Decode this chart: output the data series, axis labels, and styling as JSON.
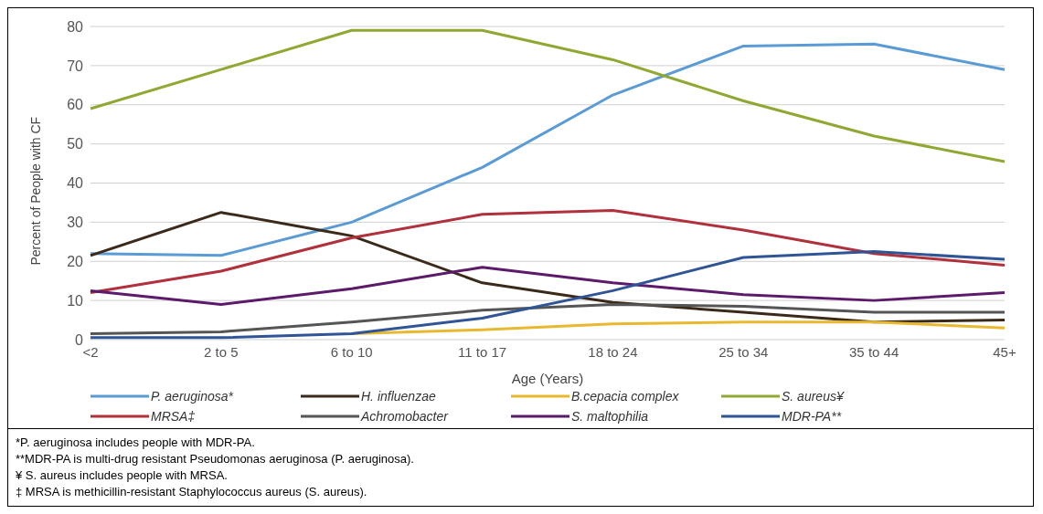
{
  "chart_data": {
    "type": "line",
    "xlabel": "Age (Years)",
    "ylabel": "Percent of People with CF",
    "categories": [
      "<2",
      "2 to 5",
      "6 to 10",
      "11 to 17",
      "18 to 24",
      "25 to 34",
      "35 to 44",
      "45+"
    ],
    "series": [
      {
        "name": "P. aeruginosa*",
        "color": "#5b9bd5",
        "values": [
          22,
          21.5,
          30,
          44,
          62.5,
          75,
          75.5,
          69
        ]
      },
      {
        "name": "H. influenzae",
        "color": "#3b2a1a",
        "values": [
          21.5,
          32.5,
          26.5,
          14.5,
          9.5,
          7,
          4.5,
          5
        ]
      },
      {
        "name": "B.cepacia complex",
        "color": "#e8b92e",
        "values": [
          null,
          null,
          1.5,
          2.5,
          4,
          4.5,
          4.5,
          3
        ]
      },
      {
        "name": "S. aureus¥",
        "color": "#8fa832",
        "values": [
          59,
          69,
          79,
          79,
          71.5,
          61,
          52,
          45.5
        ]
      },
      {
        "name": "MRSA‡",
        "color": "#b0303c",
        "values": [
          12,
          17.5,
          26,
          32,
          33,
          28,
          22,
          19
        ]
      },
      {
        "name": "Achromobacter",
        "color": "#555555",
        "values": [
          1.5,
          2,
          4.5,
          7.5,
          9,
          8.5,
          7,
          7
        ]
      },
      {
        "name": "S. maltophilia",
        "color": "#5c1a6a",
        "values": [
          12.5,
          9,
          13,
          18.5,
          14.5,
          11.5,
          10,
          12
        ]
      },
      {
        "name": "MDR-PA**",
        "color": "#2f5597",
        "values": [
          0.5,
          0.5,
          1.5,
          5.5,
          12.5,
          21,
          22.5,
          20.5
        ]
      }
    ],
    "ylim": [
      0,
      80
    ],
    "yticks": [
      0,
      10,
      20,
      30,
      40,
      50,
      60,
      70,
      80
    ],
    "grid": "y",
    "legend": "bottom",
    "marker": "none",
    "line_style": "solid",
    "annotations": [
      "*P. aeruginosa includes people with MDR-PA.",
      "**MDR-PA is multi-drug resistant Pseudomonas aeruginosa (P. aeruginosa).",
      "¥ S. aureus includes people with MRSA.",
      "‡ MRSA is methicillin-resistant Staphylococcus aureus (S. aureus)."
    ]
  }
}
